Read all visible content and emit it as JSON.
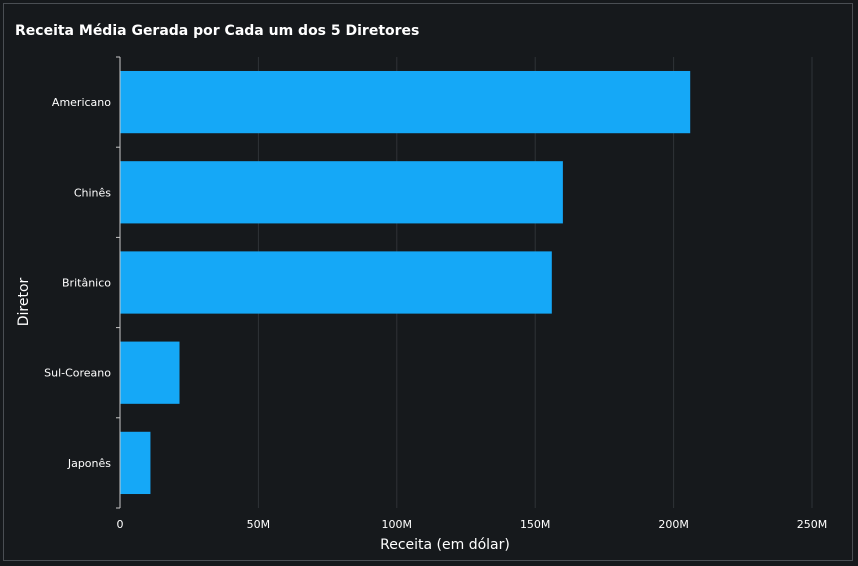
{
  "chart_data": {
    "type": "bar",
    "orientation": "horizontal",
    "title": "Receita Média Gerada por Cada um dos 5 Diretores",
    "xlabel": "Receita (em dólar)",
    "ylabel": "Diretor",
    "categories": [
      "Americano",
      "Chinês",
      "Britânico",
      "Sul-Coreano",
      "Japonês"
    ],
    "values": [
      206000000,
      160000000,
      156000000,
      21500000,
      11000000
    ],
    "xlim": [
      0,
      250000000
    ],
    "x_ticks": [
      0,
      50000000,
      100000000,
      150000000,
      200000000,
      250000000
    ],
    "x_tick_labels": [
      "0",
      "50M",
      "100M",
      "150M",
      "200M",
      "250M"
    ],
    "grid": "vertical",
    "colors": {
      "bar": "#15a8f7",
      "background": "#16191c",
      "grid": "#2f3337",
      "axis": "#c8c8c8",
      "text": "#ffffff"
    }
  }
}
